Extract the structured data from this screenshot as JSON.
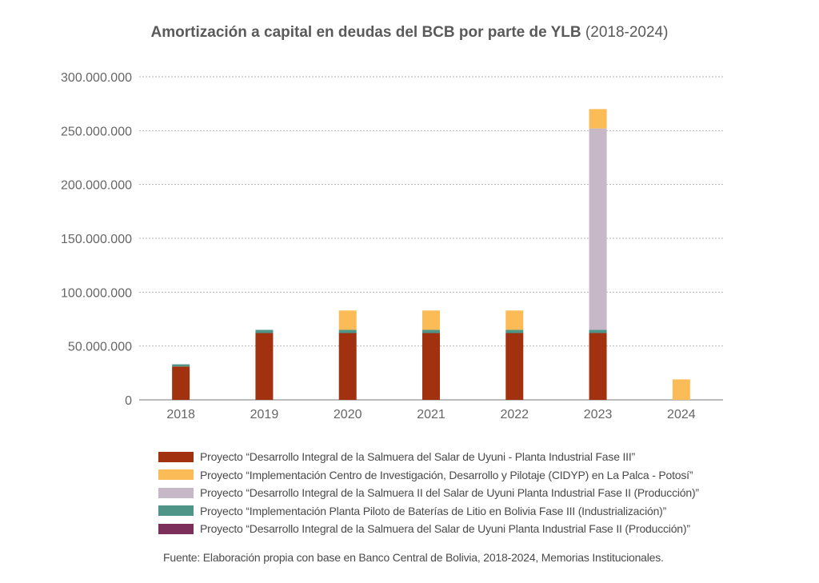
{
  "chart_data": {
    "type": "bar",
    "stacked": true,
    "title": "Amortización a capital en deudas del BCB por parte de YLB",
    "subtitle": "(2018-2024)",
    "xlabel": "",
    "ylabel": "",
    "ylim": [
      0,
      300000000
    ],
    "yticks": [
      0,
      50000000,
      100000000,
      150000000,
      200000000,
      250000000,
      300000000
    ],
    "ytick_labels": [
      "0",
      "50.000.000",
      "100.000.000",
      "150.000.000",
      "200.000.000",
      "250.000.000",
      "300.000.000"
    ],
    "grid": true,
    "legend_position": "bottom",
    "categories": [
      "2018",
      "2019",
      "2020",
      "2021",
      "2022",
      "2023",
      "2024"
    ],
    "series": [
      {
        "name": "Proyecto “Desarrollo Integral de la Salmuera del Salar de Uyuni - Planta Industrial Fase III”",
        "color": "#A2320F",
        "values": [
          31000000,
          62000000,
          62000000,
          62000000,
          62000000,
          62000000,
          0
        ]
      },
      {
        "name": "Proyecto “Implementación Planta Piloto de Baterías de Litio en Bolivia Fase III (Industrialización)”",
        "color": "#4E9487",
        "values": [
          2000000,
          3000000,
          3000000,
          3000000,
          3000000,
          3000000,
          0
        ]
      },
      {
        "name": "Proyecto “Desarrollo Integral de la Salmuera del Salar de Uyuni Planta Industrial Fase II (Producción)”",
        "color": "#7B2F5A",
        "values": [
          0,
          0,
          0,
          0,
          0,
          0,
          0
        ]
      },
      {
        "name": "Proyecto “Desarrollo Integral de la Salmuera II del Salar de Uyuni Planta Industrial Fase II (Producción)”",
        "color": "#C7B8C7",
        "values": [
          0,
          0,
          0,
          0,
          0,
          187000000,
          0
        ]
      },
      {
        "name": "Proyecto “Implementación Centro de Investigación, Desarrollo y Pilotaje (CIDYP) en La Palca - Potosí”",
        "color": "#FBBC57",
        "values": [
          0,
          0,
          18000000,
          18000000,
          18000000,
          18000000,
          19000000
        ]
      }
    ],
    "legend_order": [
      0,
      4,
      3,
      1,
      2
    ]
  },
  "source_note": "Fuente: Elaboración propia con base en Banco Central de Bolivia, 2018-2024, Memorias Institucionales."
}
